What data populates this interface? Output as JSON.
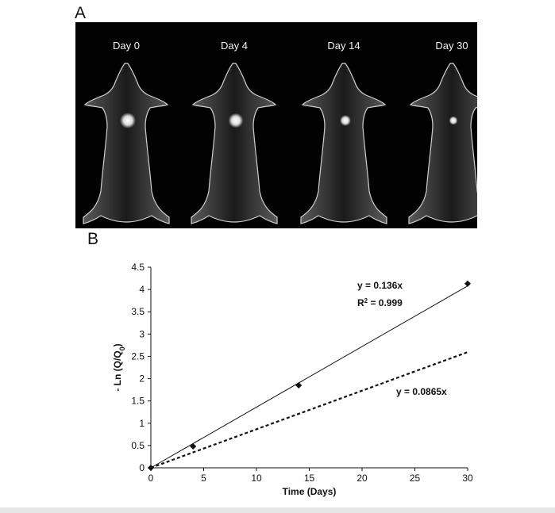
{
  "panel_a": {
    "label": "A",
    "days": [
      "Day 0",
      "Day 4",
      "Day 14",
      "Day 30"
    ],
    "spot_intensity": [
      1.0,
      0.9,
      0.5,
      0.25
    ]
  },
  "panel_b": {
    "label": "B"
  },
  "chart_data": {
    "type": "scatter",
    "xlabel": "Time (Days)",
    "ylabel": "- Ln (Q/Q",
    "ylabel_sub": "0",
    "ylabel_close": ")",
    "xlim": [
      0,
      30
    ],
    "ylim": [
      0,
      4.5
    ],
    "xticks": [
      "0",
      "5",
      "10",
      "15",
      "20",
      "25",
      "30"
    ],
    "yticks": [
      "0",
      "0.5",
      "1",
      "1.5",
      "2",
      "2.5",
      "3",
      "3.5",
      "4",
      "4.5"
    ],
    "series": [
      {
        "x": [
          0,
          4,
          14,
          30
        ],
        "y": [
          0,
          0.48,
          1.85,
          4.13
        ]
      }
    ],
    "trendlines": [
      {
        "slope": 0.136,
        "style": "solid"
      },
      {
        "slope": 0.0865,
        "style": "dashed"
      }
    ],
    "annotations": {
      "eq1": "y = 0.136x",
      "r2_prefix": "R",
      "r2_sup": "2",
      "r2_suffix": " = 0.999",
      "eq2": "y = 0.0865x"
    }
  }
}
